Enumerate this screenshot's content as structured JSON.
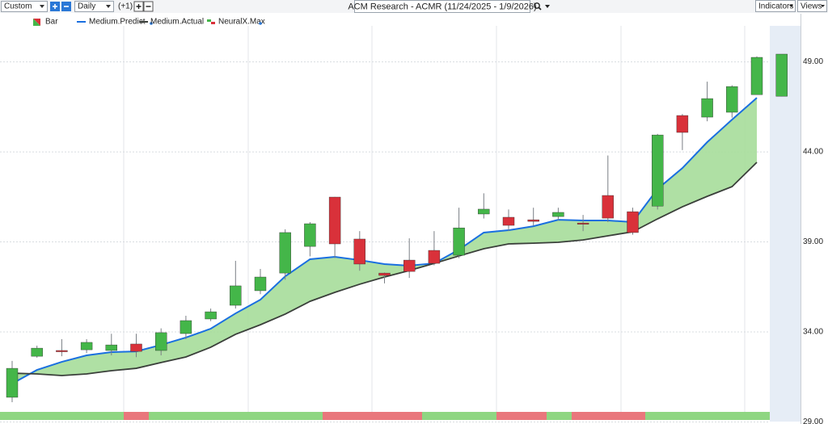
{
  "toolbar": {
    "range": "Custom",
    "interval": "Daily",
    "offset": "(+1)",
    "title": "ACM Research - ACMR (11/24/2025 - 1/9/2026)",
    "indicators": "Indicators",
    "views": "Views"
  },
  "chart_data": {
    "type": "candlestick",
    "legend": [
      "Bar",
      "Medium.Predict",
      "Medium.Actual",
      "NeuralX.Max"
    ],
    "categories": [
      null,
      null,
      null,
      null,
      null,
      null,
      null,
      null,
      null,
      null,
      null,
      null,
      null,
      null,
      null,
      null,
      null,
      null,
      null,
      null,
      null,
      null,
      null,
      null,
      null,
      null,
      null,
      null,
      null,
      null,
      null,
      null
    ],
    "candles": {
      "up_color": "#44b649",
      "down_color": "#d9313a",
      "open": [
        30.37,
        32.65,
        32.97,
        33.01,
        32.97,
        33.33,
        32.97,
        33.91,
        34.72,
        35.48,
        36.29,
        37.27,
        38.75,
        41.49,
        39.16,
        37.27,
        37.99,
        38.53,
        38.26,
        40.55,
        40.37,
        40.23,
        40.41,
        40.05,
        41.58,
        40.68,
        40.99,
        46.02,
        45.93,
        46.2,
        47.18,
        47.09
      ],
      "high": [
        32.39,
        33.24,
        33.6,
        33.6,
        33.9,
        33.9,
        34.2,
        34.9,
        35.3,
        37.95,
        37.5,
        39.7,
        40.1,
        41.5,
        39.6,
        37.3,
        39.2,
        39.6,
        40.9,
        41.7,
        40.8,
        40.9,
        40.9,
        40.5,
        43.8,
        40.9,
        45.0,
        46.1,
        47.9,
        47.7,
        49.3,
        49.43
      ],
      "low": [
        30.1,
        32.57,
        32.65,
        32.83,
        32.7,
        32.6,
        32.7,
        33.6,
        34.6,
        35.3,
        36.1,
        36.9,
        38.2,
        38.1,
        37.4,
        36.7,
        37.0,
        37.7,
        38.1,
        40.3,
        39.6,
        39.9,
        40.2,
        39.6,
        40.1,
        39.4,
        40.8,
        44.1,
        45.7,
        45.9,
        47.2,
        47.09
      ],
      "close": [
        31.98,
        33.1,
        32.9,
        33.42,
        33.28,
        32.92,
        33.96,
        34.63,
        35.12,
        36.56,
        37.05,
        39.52,
        40.01,
        38.89,
        37.77,
        37.14,
        37.36,
        37.81,
        39.78,
        40.82,
        39.92,
        40.14,
        40.64,
        40.01,
        40.32,
        39.52,
        44.94,
        45.08,
        46.96,
        47.63,
        49.25,
        49.43
      ]
    },
    "series": [
      {
        "name": "Medium.Predict",
        "color": "#1a6fe0",
        "values": [
          31.13,
          31.89,
          32.34,
          32.7,
          32.88,
          32.92,
          33.28,
          33.69,
          34.18,
          35.03,
          35.79,
          37.09,
          38.04,
          38.17,
          37.99,
          37.77,
          37.68,
          37.81,
          38.57,
          39.52,
          39.65,
          39.87,
          40.23,
          40.19,
          40.19,
          40.1,
          41.94,
          43.1,
          44.54,
          45.79,
          47.0,
          null
        ]
      },
      {
        "name": "Medium.Actual",
        "color": "#3a3f3a",
        "values": [
          31.71,
          31.67,
          31.58,
          31.67,
          31.85,
          31.98,
          32.3,
          32.61,
          33.15,
          33.87,
          34.4,
          34.99,
          35.7,
          36.2,
          36.65,
          37.05,
          37.41,
          37.81,
          38.22,
          38.62,
          38.89,
          38.93,
          38.98,
          39.11,
          39.34,
          39.56,
          40.28,
          40.95,
          41.53,
          42.07,
          43.42,
          null
        ]
      }
    ],
    "area_color": "#a6dd9a",
    "ylim": [
      29,
      51
    ],
    "yticks": [
      {
        "value": 29,
        "label": "29.00"
      },
      {
        "value": 34,
        "label": "34.00"
      },
      {
        "value": 39,
        "label": "39.00"
      },
      {
        "value": 44,
        "label": "44.00"
      },
      {
        "value": 49,
        "label": "49.00"
      }
    ],
    "grid": true
  }
}
